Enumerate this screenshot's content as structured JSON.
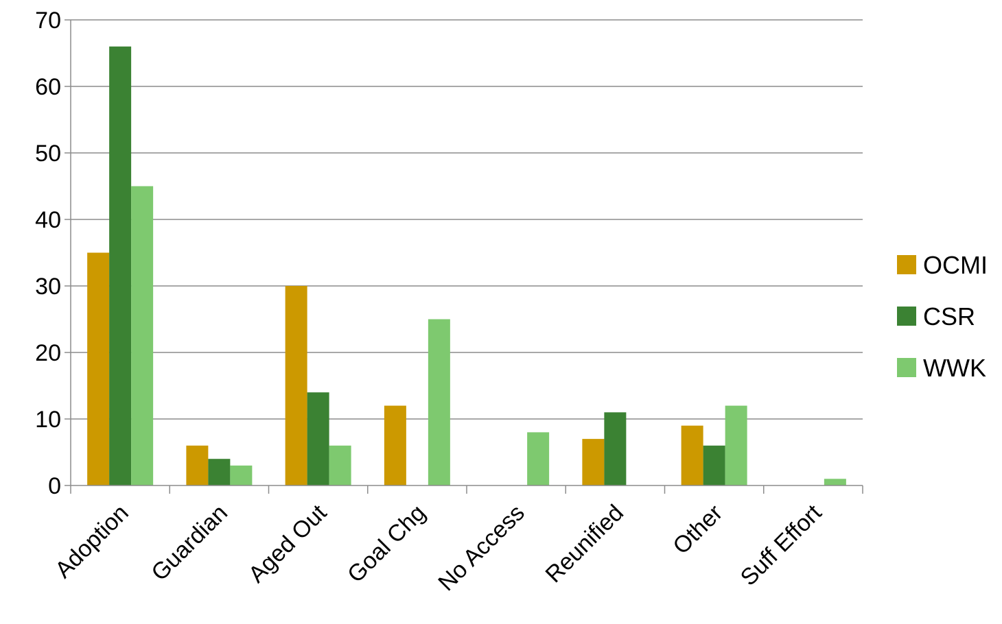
{
  "chart_data": {
    "type": "bar",
    "title": "",
    "xlabel": "",
    "ylabel": "",
    "categories": [
      "Adoption",
      "Guardian",
      "Aged Out",
      "Goal Chg",
      "No Access",
      "Reunified",
      "Other",
      "Suff Effort"
    ],
    "series": [
      {
        "name": "OCMI",
        "color": "#cc9900",
        "values": [
          35,
          6,
          30,
          12,
          0,
          7,
          9,
          0
        ]
      },
      {
        "name": "CSR",
        "color": "#3b8233",
        "values": [
          66,
          4,
          14,
          0,
          0,
          11,
          6,
          0
        ]
      },
      {
        "name": "WWK",
        "color": "#7ec96f",
        "values": [
          45,
          3,
          6,
          25,
          8,
          0,
          12,
          1
        ]
      }
    ],
    "ylim": [
      0,
      70
    ],
    "yticks": [
      0,
      10,
      20,
      30,
      40,
      50,
      60,
      70
    ],
    "grid": true,
    "legend_position": "right",
    "gridline_color": "#8c8c8c",
    "axis_color": "#8c8c8c"
  }
}
